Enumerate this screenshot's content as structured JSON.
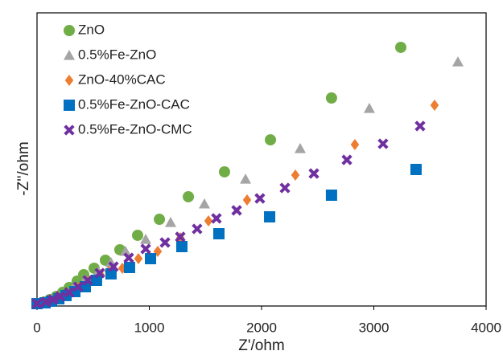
{
  "chart_data": {
    "type": "scatter",
    "xlabel": "Z'/ohm",
    "ylabel": "-Z''/ohm",
    "xlim": [
      0,
      4000
    ],
    "xticks": [
      0,
      1000,
      2000,
      3000,
      4000
    ],
    "ylim": [
      0,
      2600
    ],
    "yticks": [],
    "legend": "upper left",
    "series": [
      {
        "name": "ZnO",
        "color": "#70ad47",
        "marker": "circle",
        "x": [
          0,
          65,
          115,
          172,
          229,
          287,
          358,
          416,
          509,
          609,
          738,
          896,
          1090,
          1348,
          1670,
          2079,
          2623,
          3240
        ],
        "values": [
          21,
          36,
          57,
          85,
          121,
          164,
          221,
          278,
          335,
          406,
          499,
          627,
          769,
          969,
          1190,
          1474,
          1845,
          2294
        ]
      },
      {
        "name": "0.5%Fe-ZnO",
        "color": "#a5a5a5",
        "marker": "triangle",
        "x": [
          0,
          72,
          129,
          186,
          258,
          330,
          430,
          545,
          659,
          788,
          968,
          1190,
          1491,
          1857,
          2344,
          2960,
          3749
        ],
        "values": [
          21,
          36,
          57,
          85,
          121,
          171,
          235,
          306,
          385,
          485,
          591,
          741,
          905,
          1125,
          1396,
          1752,
          2165
        ]
      },
      {
        "name": "ZnO-40%CAC",
        "color": "#ed7d31",
        "marker": "diamond",
        "x": [
          0,
          86,
          143,
          215,
          294,
          373,
          466,
          566,
          638,
          760,
          903,
          1075,
          1276,
          1527,
          1871,
          2301,
          2831,
          3541
        ],
        "values": [
          21,
          36,
          57,
          85,
          121,
          164,
          221,
          278,
          306,
          335,
          420,
          484,
          605,
          755,
          940,
          1161,
          1432,
          1781
        ]
      },
      {
        "name": "0.5%Fe-ZnO-CAC",
        "color": "#0070c0",
        "marker": "square",
        "x": [
          0,
          72,
          129,
          194,
          258,
          337,
          430,
          530,
          659,
          824,
          1011,
          1290,
          1620,
          2072,
          2623,
          3376
        ],
        "values": [
          21,
          28,
          43,
          64,
          93,
          128,
          171,
          228,
          285,
          342,
          420,
          527,
          641,
          791,
          983,
          1211
        ]
      },
      {
        "name": "0.5%Fe-ZnO-CMC",
        "color": "#7030a0",
        "marker": "x",
        "x": [
          0,
          79,
          143,
          208,
          287,
          366,
          452,
          559,
          681,
          817,
          968,
          1140,
          1276,
          1426,
          1598,
          1778,
          1985,
          2208,
          2466,
          2760,
          3082,
          3412
        ],
        "values": [
          21,
          36,
          57,
          85,
          121,
          171,
          228,
          292,
          349,
          427,
          506,
          563,
          613,
          684,
          777,
          848,
          954,
          1047,
          1175,
          1296,
          1439,
          1596
        ]
      }
    ]
  }
}
